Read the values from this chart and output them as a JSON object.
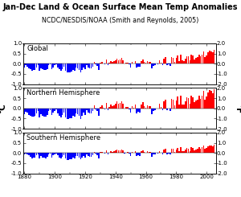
{
  "title": "Jan-Dec Land & Ocean Surface Mean Temp Anomalies",
  "subtitle": "NCDC/NESDIS/NOAA (Smith and Reynolds, 2005)",
  "years": [
    1880,
    1881,
    1882,
    1883,
    1884,
    1885,
    1886,
    1887,
    1888,
    1889,
    1890,
    1891,
    1892,
    1893,
    1894,
    1895,
    1896,
    1897,
    1898,
    1899,
    1900,
    1901,
    1902,
    1903,
    1904,
    1905,
    1906,
    1907,
    1908,
    1909,
    1910,
    1911,
    1912,
    1913,
    1914,
    1915,
    1916,
    1917,
    1918,
    1919,
    1920,
    1921,
    1922,
    1923,
    1924,
    1925,
    1926,
    1927,
    1928,
    1929,
    1930,
    1931,
    1932,
    1933,
    1934,
    1935,
    1936,
    1937,
    1938,
    1939,
    1940,
    1941,
    1942,
    1943,
    1944,
    1945,
    1946,
    1947,
    1948,
    1949,
    1950,
    1951,
    1952,
    1953,
    1954,
    1955,
    1956,
    1957,
    1958,
    1959,
    1960,
    1961,
    1962,
    1963,
    1964,
    1965,
    1966,
    1967,
    1968,
    1969,
    1970,
    1971,
    1972,
    1973,
    1974,
    1975,
    1976,
    1977,
    1978,
    1979,
    1980,
    1981,
    1982,
    1983,
    1984,
    1985,
    1986,
    1987,
    1988,
    1989,
    1990,
    1991,
    1992,
    1993,
    1994,
    1995,
    1996,
    1997,
    1998,
    1999,
    2000,
    2001,
    2002,
    2003,
    2004,
    2005
  ],
  "global": [
    -0.17,
    -0.09,
    -0.13,
    -0.21,
    -0.27,
    -0.33,
    -0.31,
    -0.3,
    -0.17,
    -0.09,
    -0.35,
    -0.22,
    -0.28,
    -0.31,
    -0.32,
    -0.26,
    -0.09,
    -0.04,
    -0.26,
    -0.17,
    -0.09,
    -0.03,
    -0.18,
    -0.28,
    -0.36,
    -0.27,
    -0.14,
    -0.35,
    -0.43,
    -0.43,
    -0.41,
    -0.4,
    -0.29,
    -0.34,
    -0.19,
    -0.22,
    -0.3,
    -0.43,
    -0.29,
    -0.17,
    -0.28,
    -0.07,
    -0.17,
    -0.21,
    -0.21,
    -0.13,
    0.1,
    -0.04,
    -0.12,
    -0.32,
    0.06,
    0.1,
    0.02,
    -0.04,
    0.2,
    -0.07,
    0.03,
    0.14,
    0.09,
    0.12,
    0.18,
    0.25,
    0.17,
    0.21,
    0.27,
    0.18,
    -0.01,
    0.04,
    0.05,
    -0.05,
    -0.17,
    0.09,
    0.02,
    0.14,
    -0.2,
    -0.14,
    -0.16,
    0.13,
    0.22,
    0.09,
    0.03,
    0.12,
    0.09,
    0.09,
    -0.22,
    -0.11,
    -0.07,
    -0.0,
    -0.02,
    0.16,
    0.04,
    -0.08,
    0.26,
    0.31,
    -0.07,
    -0.02,
    -0.1,
    0.33,
    0.3,
    0.1,
    0.27,
    0.41,
    0.14,
    0.45,
    0.15,
    0.13,
    0.26,
    0.38,
    0.36,
    0.17,
    0.45,
    0.4,
    0.21,
    0.27,
    0.31,
    0.44,
    0.35,
    0.46,
    0.62,
    0.31,
    0.42,
    0.56,
    0.63,
    0.62,
    0.55,
    0.68
  ],
  "northern": [
    -0.29,
    -0.17,
    -0.21,
    -0.31,
    -0.36,
    -0.4,
    -0.39,
    -0.38,
    -0.25,
    -0.12,
    -0.44,
    -0.3,
    -0.35,
    -0.39,
    -0.39,
    -0.32,
    -0.13,
    -0.07,
    -0.31,
    -0.22,
    -0.12,
    -0.04,
    -0.24,
    -0.35,
    -0.44,
    -0.34,
    -0.19,
    -0.43,
    -0.52,
    -0.52,
    -0.5,
    -0.49,
    -0.36,
    -0.41,
    -0.24,
    -0.28,
    -0.38,
    -0.54,
    -0.36,
    -0.21,
    -0.34,
    -0.08,
    -0.2,
    -0.25,
    -0.24,
    -0.14,
    0.14,
    -0.04,
    -0.14,
    -0.38,
    0.08,
    0.13,
    0.03,
    -0.04,
    0.26,
    -0.08,
    0.05,
    0.19,
    0.12,
    0.16,
    0.24,
    0.34,
    0.22,
    0.28,
    0.36,
    0.23,
    -0.01,
    0.05,
    0.06,
    -0.06,
    -0.19,
    0.12,
    0.03,
    0.19,
    -0.24,
    -0.16,
    -0.19,
    0.18,
    0.3,
    0.12,
    0.04,
    0.16,
    0.12,
    0.12,
    -0.27,
    -0.14,
    -0.09,
    -0.0,
    -0.02,
    0.22,
    0.06,
    -0.1,
    0.35,
    0.43,
    -0.09,
    -0.02,
    -0.13,
    0.46,
    0.41,
    0.14,
    0.38,
    0.57,
    0.19,
    0.62,
    0.2,
    0.18,
    0.36,
    0.53,
    0.5,
    0.24,
    0.62,
    0.55,
    0.29,
    0.37,
    0.43,
    0.61,
    0.48,
    0.64,
    0.86,
    0.42,
    0.58,
    0.78,
    0.88,
    0.86,
    0.76,
    0.94
  ],
  "southern": [
    -0.05,
    -0.01,
    -0.05,
    -0.11,
    -0.18,
    -0.26,
    -0.23,
    -0.22,
    -0.09,
    -0.06,
    -0.26,
    -0.14,
    -0.21,
    -0.23,
    -0.25,
    -0.2,
    -0.05,
    -0.01,
    -0.21,
    -0.12,
    -0.06,
    -0.02,
    -0.12,
    -0.21,
    -0.28,
    -0.2,
    -0.09,
    -0.27,
    -0.34,
    -0.34,
    -0.32,
    -0.31,
    -0.22,
    -0.27,
    -0.14,
    -0.16,
    -0.22,
    -0.32,
    -0.22,
    -0.13,
    -0.22,
    -0.06,
    -0.14,
    -0.17,
    -0.18,
    -0.12,
    0.06,
    -0.04,
    -0.1,
    -0.26,
    0.04,
    0.07,
    0.01,
    -0.04,
    0.14,
    -0.06,
    0.01,
    0.09,
    0.06,
    0.08,
    0.12,
    0.16,
    0.12,
    0.14,
    0.18,
    0.13,
    -0.01,
    0.03,
    0.04,
    -0.04,
    -0.15,
    0.06,
    0.01,
    0.09,
    -0.16,
    -0.12,
    -0.13,
    0.08,
    0.14,
    0.06,
    0.02,
    0.08,
    0.06,
    0.06,
    -0.17,
    -0.08,
    -0.05,
    0.0,
    -0.02,
    0.1,
    0.02,
    -0.06,
    0.17,
    0.19,
    -0.05,
    -0.02,
    -0.07,
    0.2,
    0.19,
    0.06,
    0.16,
    0.25,
    0.09,
    0.28,
    0.1,
    0.08,
    0.16,
    0.23,
    0.22,
    0.1,
    0.28,
    0.25,
    0.13,
    0.17,
    0.19,
    0.27,
    0.22,
    0.28,
    0.38,
    0.2,
    0.26,
    0.34,
    0.38,
    0.38,
    0.34,
    0.42
  ],
  "ylim_left": [
    -1.0,
    1.0
  ],
  "ylim_right": [
    -2.0,
    2.0
  ],
  "yticks_left": [
    -1.0,
    -0.5,
    0.0,
    0.5,
    1.0
  ],
  "yticks_right": [
    -2.0,
    -1.0,
    0.0,
    1.0,
    2.0
  ],
  "xticks": [
    1880,
    1900,
    1920,
    1940,
    1960,
    1980,
    2000
  ],
  "panel_labels": [
    "Global",
    "Northern Hemisphere",
    "Southern Hemisphere"
  ],
  "color_pos": "#ff0000",
  "color_neg": "#0000ff",
  "bg_color": "#ffffff",
  "ylabel_left": "°C",
  "ylabel_right": "°F",
  "title_fontsize": 7.0,
  "subtitle_fontsize": 5.8,
  "tick_fontsize": 5.0,
  "panel_label_fontsize": 6.0
}
